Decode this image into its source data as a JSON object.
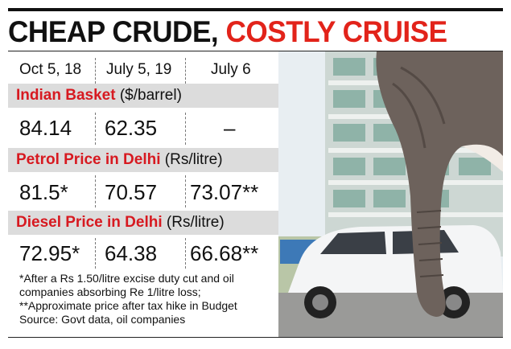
{
  "headline": {
    "part1": "CHEAP CRUDE,",
    "part2": "COSTLY CRUISE"
  },
  "dates": [
    "Oct 5, 18",
    "July 5, 19",
    "July 6"
  ],
  "sections": [
    {
      "name": "Indian Basket",
      "unit": "($/barrel)",
      "values": [
        "84.14",
        "62.35",
        "–"
      ]
    },
    {
      "name": "Petrol Price in Delhi",
      "unit": "(Rs/litre)",
      "values": [
        "81.5*",
        "70.57",
        "73.07**"
      ]
    },
    {
      "name": "Diesel Price in Delhi",
      "unit": "(Rs/litre)",
      "values": [
        "72.95*",
        "64.38",
        "66.68**"
      ]
    }
  ],
  "notes": [
    "*After a Rs 1.50/litre excise duty cut and oil",
    "companies absorbing Re 1/litre loss;",
    "**Approximate price after tax hike in Budget",
    "Source: Govt data, oil companies"
  ],
  "colors": {
    "accent": "#e2231a",
    "band": "#dcdcdc",
    "text": "#111111"
  },
  "photo": {
    "description_icon": "elephant-trunk-icon"
  }
}
